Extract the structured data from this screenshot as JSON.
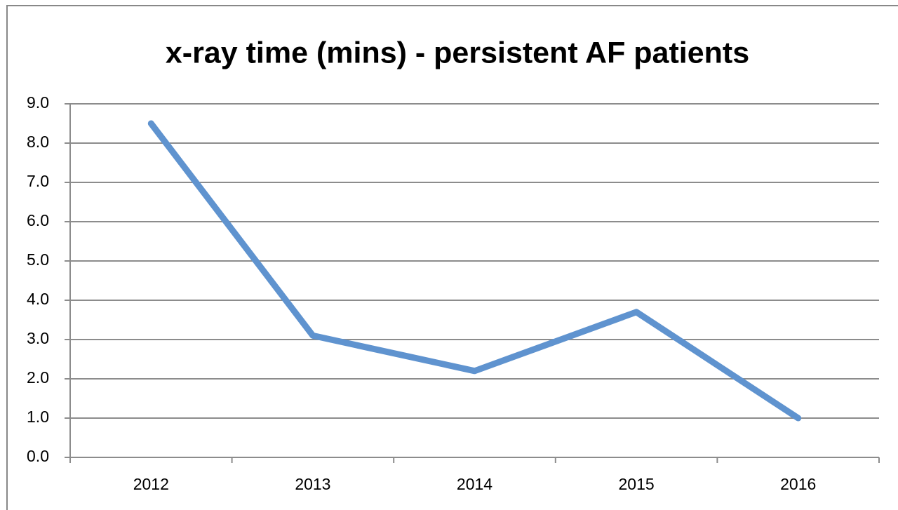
{
  "chart_data": {
    "type": "line",
    "title": "x-ray time (mins) - persistent AF patients",
    "categories": [
      "2012",
      "2013",
      "2014",
      "2015",
      "2016"
    ],
    "values": [
      8.5,
      3.1,
      2.2,
      3.7,
      1.0
    ],
    "color": "#5f93cf",
    "ylim": [
      0,
      9
    ],
    "yticks": [
      {
        "value": 0,
        "label": "0.0"
      },
      {
        "value": 1,
        "label": "1.0"
      },
      {
        "value": 2,
        "label": "2.0"
      },
      {
        "value": 3,
        "label": "3.0"
      },
      {
        "value": 4,
        "label": "4.0"
      },
      {
        "value": 5,
        "label": "5.0"
      },
      {
        "value": 6,
        "label": "6.0"
      },
      {
        "value": 7,
        "label": "7.0"
      },
      {
        "value": 8,
        "label": "8.0"
      },
      {
        "value": 9,
        "label": "9.0"
      }
    ],
    "grid": true
  }
}
